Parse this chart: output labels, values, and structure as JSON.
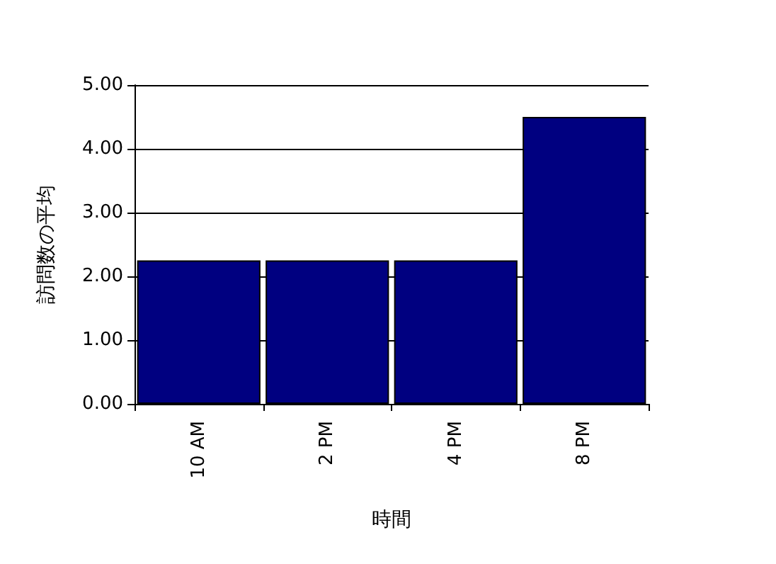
{
  "chart_data": {
    "type": "bar",
    "xlabel": "時間",
    "ylabel": "訪問数の平均",
    "categories": [
      "10 AM",
      "2 PM",
      "4 PM",
      "8 PM"
    ],
    "values": [
      2.25,
      2.25,
      2.25,
      4.5
    ],
    "color": "#000080",
    "ylim": [
      0,
      5
    ],
    "yticks": [
      {
        "value": 0,
        "label": "0.00"
      },
      {
        "value": 1,
        "label": "1.00"
      },
      {
        "value": 2,
        "label": "2.00"
      },
      {
        "value": 3,
        "label": "3.00"
      },
      {
        "value": 4,
        "label": "4.00"
      },
      {
        "value": 5,
        "label": "5.00"
      }
    ],
    "grid": "y"
  }
}
